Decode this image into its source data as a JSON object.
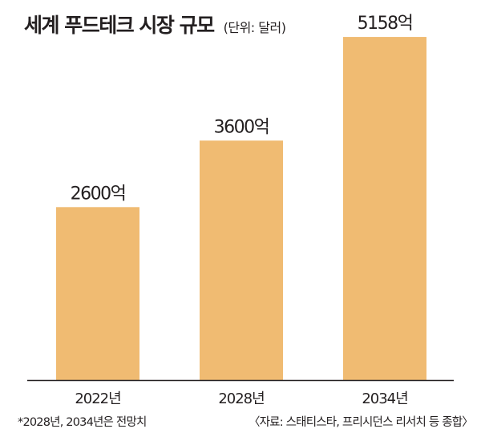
{
  "chart_data": {
    "type": "bar",
    "title": "세계 푸드테크 시장 규모",
    "unit_note": "(단위: 달러)",
    "categories": [
      "2022년",
      "2028년",
      "2034년"
    ],
    "values": [
      2600,
      3600,
      5158
    ],
    "value_labels": [
      "2600억",
      "3600억",
      "5158억"
    ],
    "value_unit": "억 달러",
    "ylim": [
      0,
      5400
    ],
    "grid": false,
    "legend": "none",
    "bar_color": "#f0bb72",
    "axis_color": "#231f20"
  },
  "footnote": "*2028년, 2034년은 전망치",
  "source": "〈자료: 스태티스타, 프리시던스 리서치 등 종합〉"
}
